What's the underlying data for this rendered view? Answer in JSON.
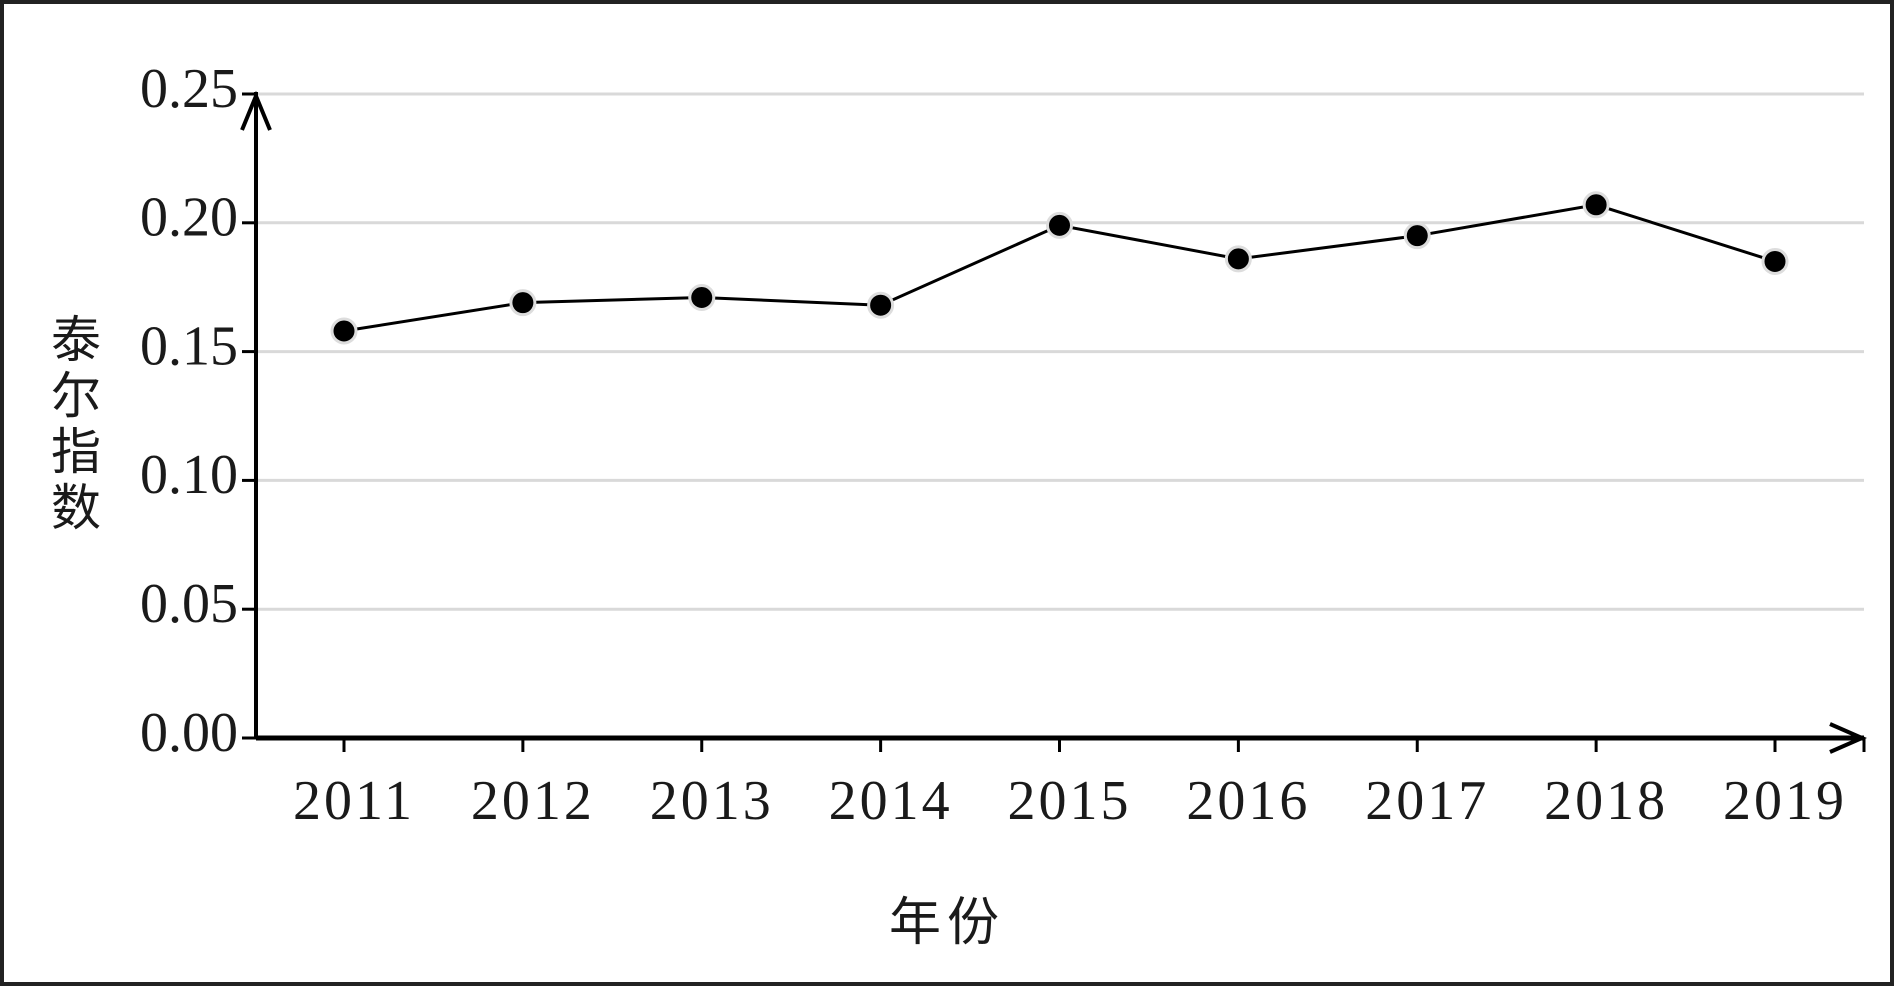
{
  "chart_data": {
    "type": "line",
    "ylabel": "泰尔指数",
    "xlabel": "年份",
    "categories": [
      "2011",
      "2012",
      "2013",
      "2014",
      "2015",
      "2016",
      "2017",
      "2018",
      "2019"
    ],
    "values": [
      0.158,
      0.169,
      0.171,
      0.168,
      0.199,
      0.186,
      0.195,
      0.207,
      0.185
    ],
    "color": "#000000",
    "ylim": [
      0,
      0.25
    ],
    "yticks": [
      {
        "value": 0,
        "label": "0.00"
      },
      {
        "value": 0.05,
        "label": "0.05"
      },
      {
        "value": 0.1,
        "label": "0.10"
      },
      {
        "value": 0.15,
        "label": "0.15"
      },
      {
        "value": 0.2,
        "label": "0.20"
      },
      {
        "value": 0.25,
        "label": "0.25"
      }
    ],
    "grid": true
  }
}
